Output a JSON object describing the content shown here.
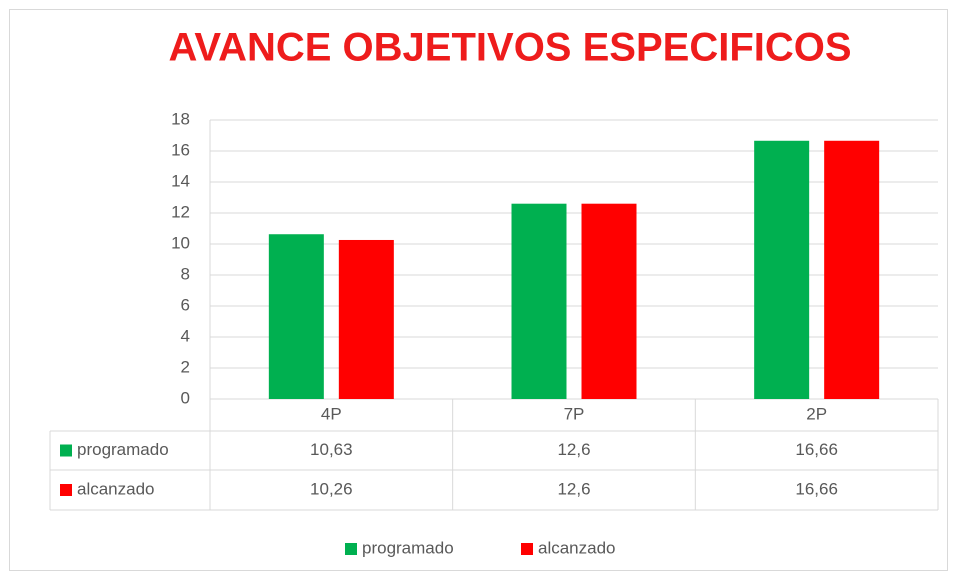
{
  "chart_data": {
    "type": "bar",
    "title": "AVANCE OBJETIVOS ESPECIFICOS",
    "categories": [
      "4P",
      "7P",
      "2P"
    ],
    "series": [
      {
        "name": "programado",
        "color": "#00b050",
        "values": [
          10.63,
          12.6,
          16.66
        ],
        "value_labels": [
          "10,63",
          "12,6",
          "16,66"
        ]
      },
      {
        "name": "alcanzado",
        "color": "#ff0000",
        "values": [
          10.26,
          12.6,
          16.66
        ],
        "value_labels": [
          "10,26",
          "12,6",
          "16,66"
        ]
      }
    ],
    "ylim": [
      0,
      18
    ],
    "yticks": [
      0,
      2,
      4,
      6,
      8,
      10,
      12,
      14,
      16,
      18
    ],
    "grid": true,
    "legend": "bottom"
  }
}
